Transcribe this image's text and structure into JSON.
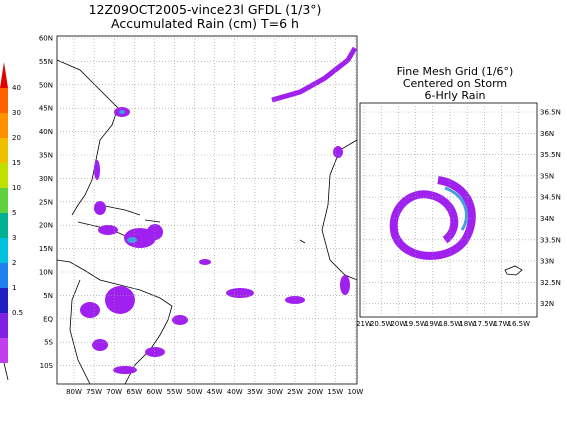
{
  "left_panel": {
    "title": [
      "12Z09OCT2005-vince23l GFDL (1/3°)",
      "Accumulated Rain (cm) T=6 h"
    ],
    "lat_labels": [
      "60N",
      "55N",
      "50N",
      "45N",
      "40N",
      "35N",
      "30N",
      "25N",
      "20N",
      "15N",
      "10N",
      "5N",
      "EQ",
      "5S",
      "10S"
    ],
    "lon_labels": [
      "80W",
      "75W",
      "70W",
      "65W",
      "60W",
      "55W",
      "50W",
      "45W",
      "40W",
      "35W",
      "30W",
      "25W",
      "20W",
      "15W",
      "10W"
    ]
  },
  "right_panel": {
    "title": [
      "Fine Mesh Grid (1/6°)",
      "Centered on Storm",
      "6-Hrly Rain"
    ],
    "lat_labels": [
      "36.5N",
      "36N",
      "35.5N",
      "35N",
      "34.5N",
      "34N",
      "33.5N",
      "33N",
      "32.5N",
      "32N"
    ],
    "lon_labels": [
      "21W",
      "20.5W",
      "20W",
      "19.5W",
      "19W",
      "18.5W",
      "18W",
      "17.5W",
      "17W",
      "16.5W"
    ]
  },
  "colorbar": {
    "labels": [
      "40",
      "30",
      "20",
      "15",
      "10",
      "5",
      "3",
      "2",
      "1",
      "0.5"
    ]
  }
}
